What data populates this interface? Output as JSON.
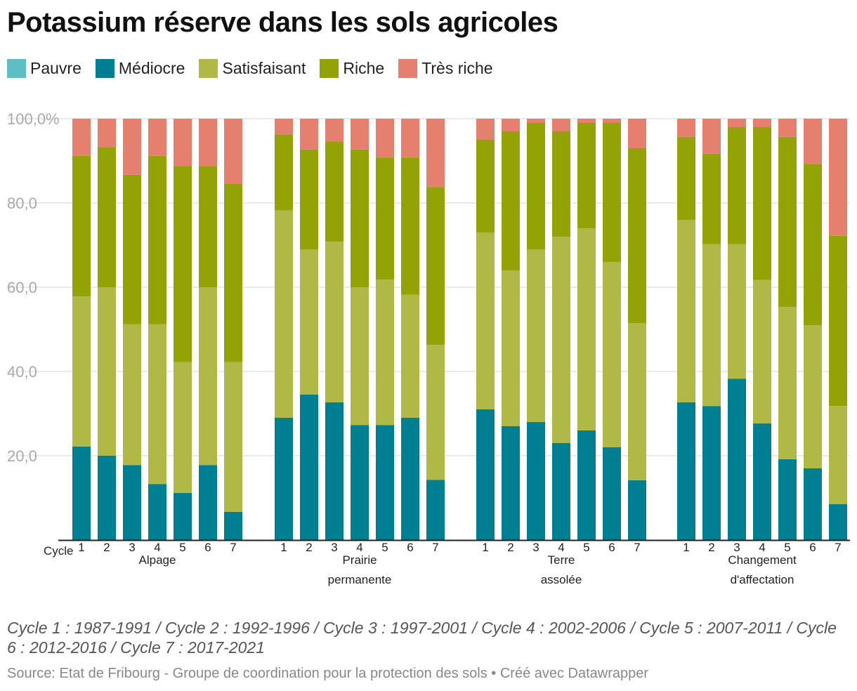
{
  "chart_data": {
    "type": "bar",
    "stacked": true,
    "title": "Potassium réserve dans les sols agricoles",
    "ylim": [
      0,
      100
    ],
    "yticks": [
      "20,0",
      "40,0",
      "60,0",
      "80,0",
      "100,0%"
    ],
    "ytick_values": [
      20,
      40,
      60,
      80,
      100
    ],
    "grid": true,
    "legend_placement": "top-left",
    "x_prefix_label": "Cycle",
    "groups": [
      {
        "label": [
          "Alpage"
        ],
        "cycles": [
          "1",
          "2",
          "3",
          "4",
          "5",
          "6",
          "7"
        ]
      },
      {
        "label": [
          "Prairie",
          "permanente"
        ],
        "cycles": [
          "1",
          "2",
          "3",
          "4",
          "5",
          "6",
          "7"
        ]
      },
      {
        "label": [
          "Terre",
          "assolée"
        ],
        "cycles": [
          "1",
          "2",
          "3",
          "4",
          "5",
          "6",
          "7"
        ]
      },
      {
        "label": [
          "Changement",
          "d'affectation"
        ],
        "cycles": [
          "1",
          "2",
          "3",
          "4",
          "5",
          "6",
          "7"
        ]
      }
    ],
    "series": [
      {
        "name": "Pauvre",
        "color": "#5dbfc5",
        "values": [
          [
            0,
            0,
            0,
            0,
            0,
            0,
            0
          ],
          [
            0,
            0,
            0,
            0,
            0,
            0,
            0
          ],
          [
            0,
            0,
            0,
            0,
            0,
            0,
            0
          ],
          [
            0,
            0,
            0,
            0,
            0,
            0,
            0
          ]
        ]
      },
      {
        "name": "Médiocre",
        "color": "#017f92",
        "values": [
          [
            22.2,
            20,
            17.8,
            13.3,
            11.2,
            17.8,
            6.7
          ],
          [
            29,
            34.5,
            32.7,
            27.3,
            27.3,
            29,
            14.3
          ],
          [
            31,
            27,
            28,
            23,
            26,
            22,
            14.2
          ],
          [
            32.7,
            31.8,
            38.3,
            27.7,
            19.2,
            17,
            8.5
          ]
        ]
      },
      {
        "name": "Satisfaisant",
        "color": "#b1b946",
        "values": [
          [
            35.6,
            40,
            33.4,
            37.9,
            31,
            42.2,
            35.5
          ],
          [
            49.2,
            34.5,
            38.1,
            32.7,
            34.5,
            29.2,
            32
          ],
          [
            42,
            37,
            41,
            49,
            48,
            44,
            37.3
          ],
          [
            43.3,
            38.4,
            31.9,
            34,
            36.1,
            34,
            23.3
          ]
        ]
      },
      {
        "name": "Riche",
        "color": "#93a205",
        "values": [
          [
            33.4,
            33.3,
            35.5,
            40,
            46.6,
            28.8,
            42.3
          ],
          [
            18.1,
            23.7,
            23.7,
            32.7,
            29,
            32.6,
            37.5
          ],
          [
            22,
            33,
            30,
            25,
            25,
            33,
            41.5
          ],
          [
            19.7,
            21.5,
            27.8,
            36.3,
            40.4,
            38.3,
            40.4
          ]
        ]
      },
      {
        "name": "Très riche",
        "color": "#e5806e",
        "values": [
          [
            8.8,
            6.7,
            13.3,
            8.8,
            11.2,
            11.2,
            15.5
          ],
          [
            3.7,
            7.3,
            5.5,
            7.3,
            9.2,
            9.2,
            16.2
          ],
          [
            5,
            3,
            1,
            3,
            1,
            1,
            7
          ],
          [
            4.3,
            8.3,
            2,
            2,
            4.3,
            10.7,
            27.8
          ]
        ]
      }
    ]
  },
  "note": "Cycle 1 : 1987-1991 / Cycle 2 : 1992-1996 / Cycle 3 : 1997-2001 / Cycle 4 : 2002-2006 / Cycle 5 : 2007-2011 / Cycle 6 : 2012-2016 / Cycle 7 : 2017-2021",
  "source": "Source: Etat de Fribourg - Groupe de coordination pour la protection des sols • Créé avec Datawrapper"
}
